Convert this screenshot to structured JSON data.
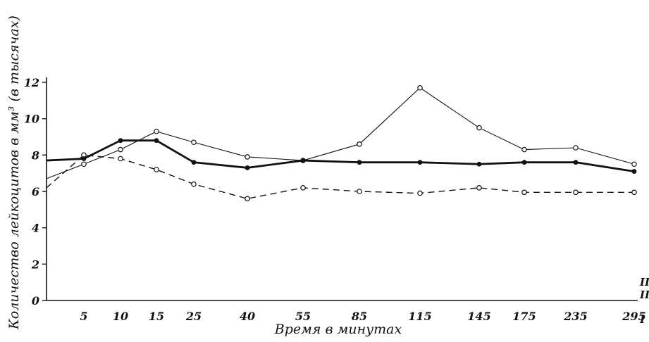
{
  "chart_data": {
    "type": "line",
    "xlabel": "Время в минутах",
    "ylabel": "Количество лейкоцитов в мм³ (в тысячах)",
    "categories": [
      "5",
      "10",
      "15",
      "25",
      "40",
      "55",
      "85",
      "115",
      "145",
      "175",
      "235",
      "295"
    ],
    "ylim": [
      0,
      12
    ],
    "yticks": [
      0,
      2,
      4,
      6,
      8,
      10,
      12
    ],
    "grid": false,
    "series": [
      {
        "name": "I",
        "style": "dashed-open-markers",
        "color": "#111111",
        "start": [
          6.2
        ],
        "values": [
          8.0,
          7.8,
          7.2,
          6.4,
          5.6,
          6.2,
          6.0,
          5.9,
          6.2,
          5.95,
          5.95,
          5.95
        ]
      },
      {
        "name": "II",
        "style": "thin-open-markers",
        "color": "#111111",
        "start": [
          6.7
        ],
        "values": [
          7.5,
          8.3,
          9.3,
          8.7,
          7.9,
          7.7,
          8.6,
          11.7,
          9.5,
          8.3,
          8.4,
          7.5
        ]
      },
      {
        "name": "III",
        "style": "thick-filled-markers",
        "color": "#111111",
        "start": [
          7.7
        ],
        "values": [
          7.8,
          8.8,
          8.8,
          7.6,
          7.3,
          7.7,
          7.6,
          7.6,
          7.5,
          7.6,
          7.6,
          7.1
        ]
      }
    ]
  }
}
